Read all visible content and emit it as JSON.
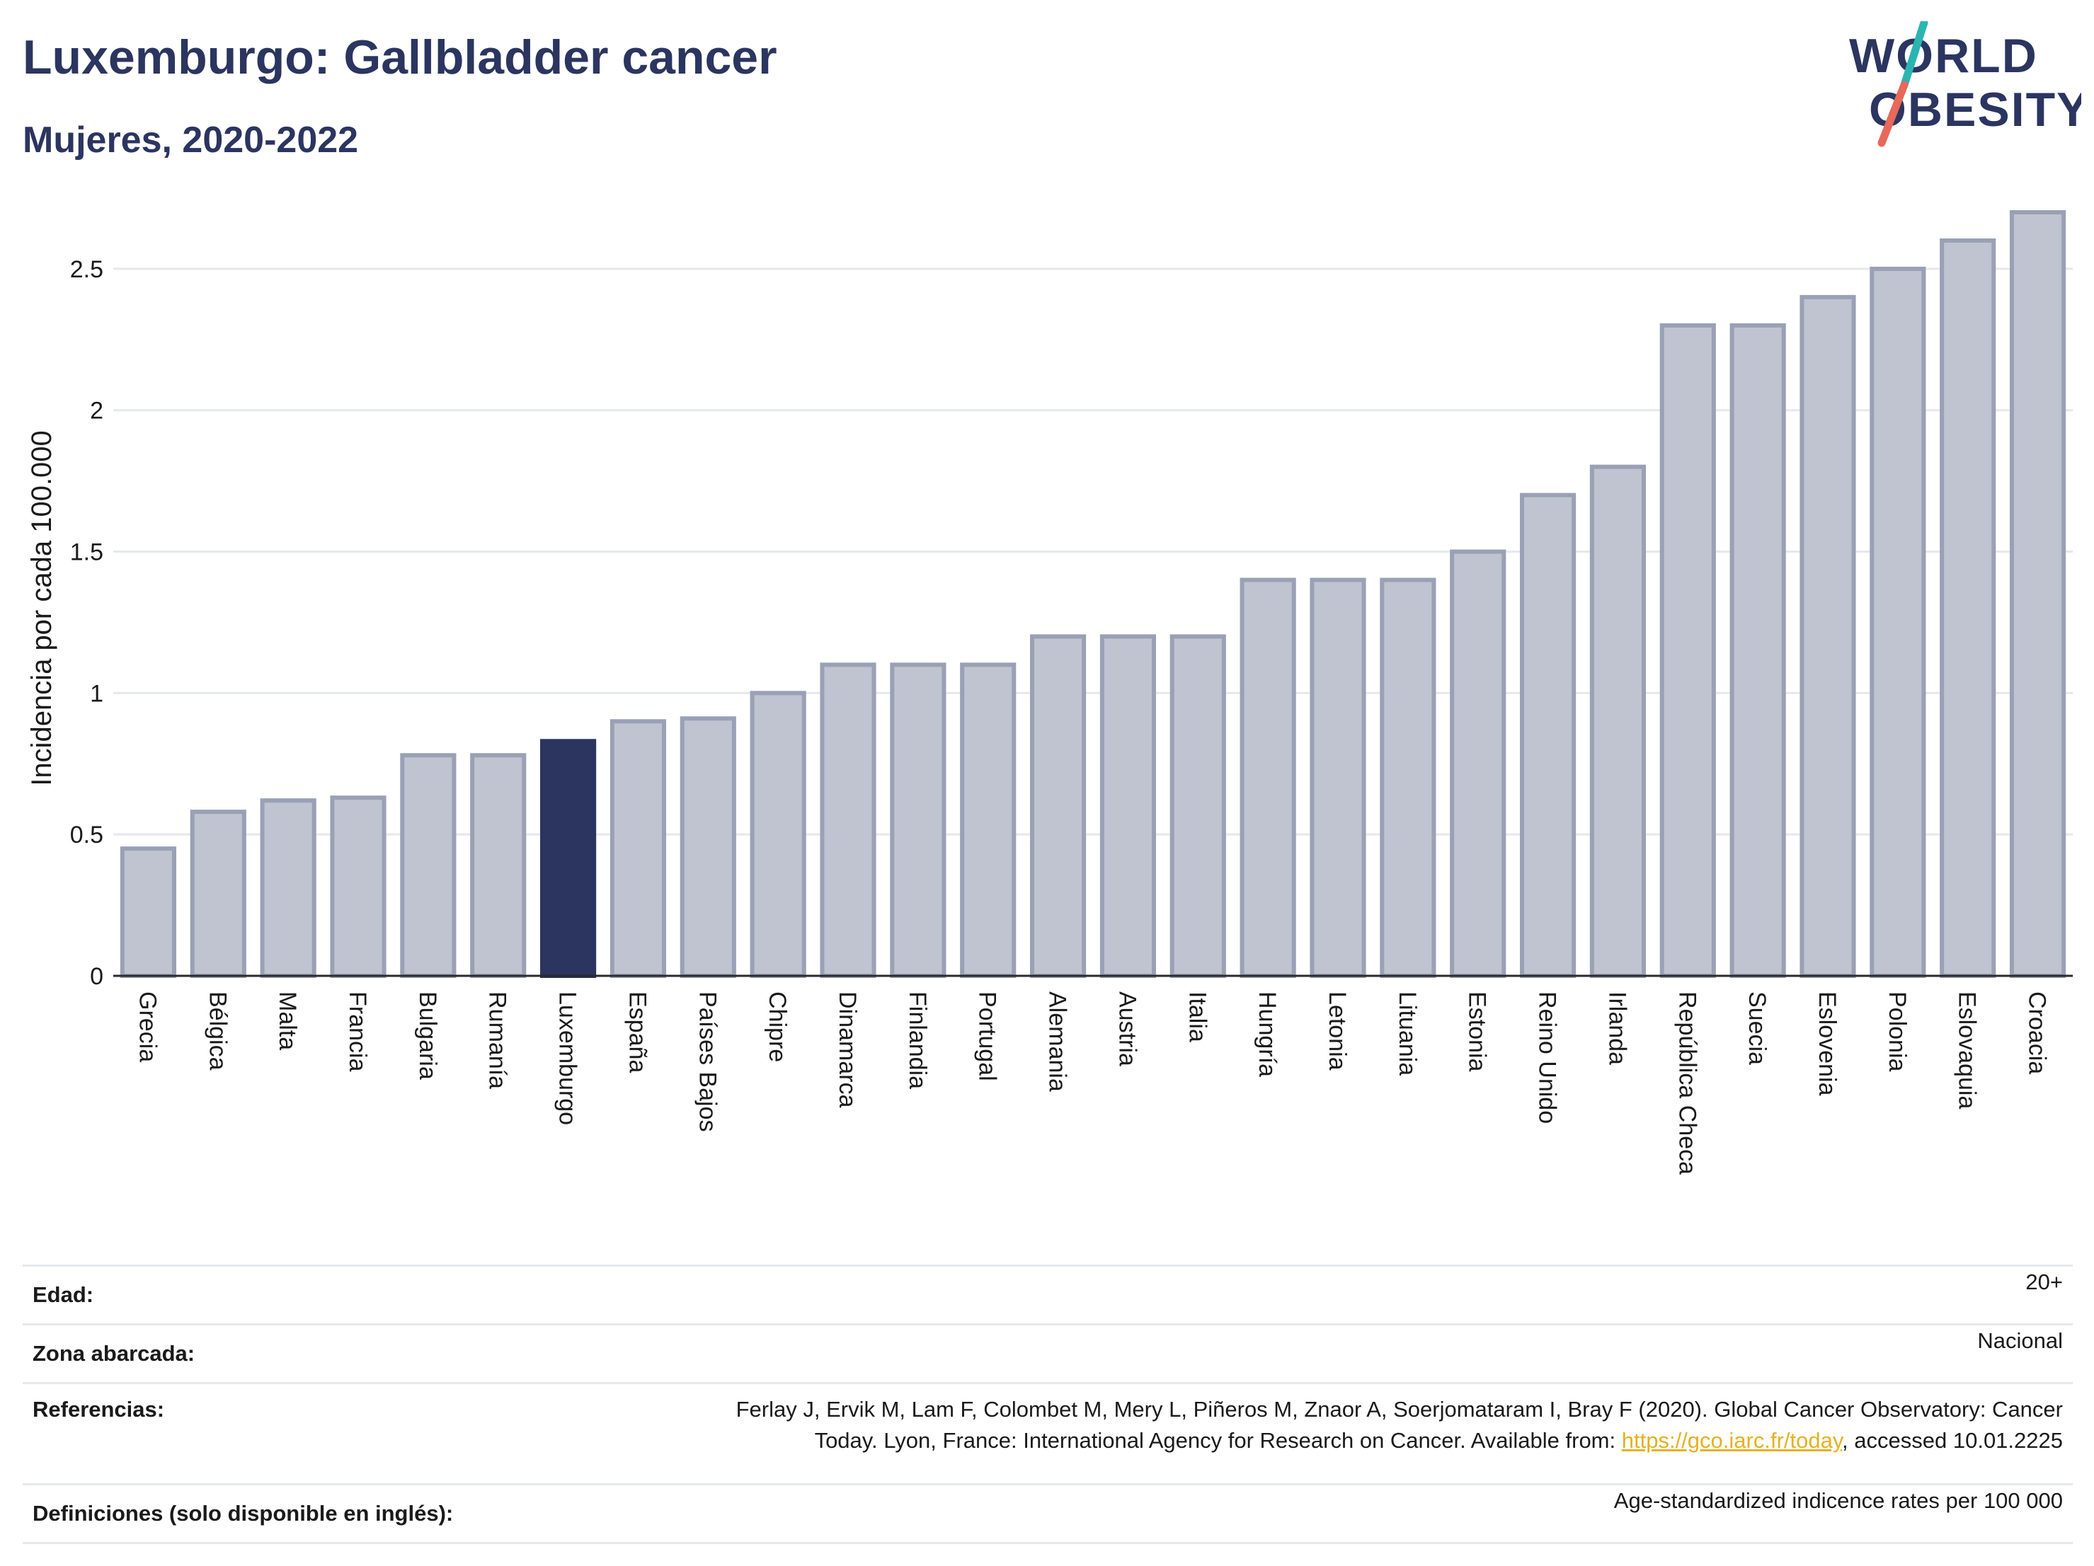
{
  "header": {
    "title": "Luxemburgo: Gallbladder cancer",
    "subtitle": "Mujeres, 2020-2022"
  },
  "logo": {
    "line1": "WORLD",
    "line2": "OBESITY",
    "colors": {
      "text": "#2b3560",
      "slash_top": "#2bb5b0",
      "slash_bottom": "#e8685a"
    }
  },
  "chart_data": {
    "type": "bar",
    "ylabel": "Incidencia por cada 100.000",
    "xlabel": "",
    "ylim": [
      0,
      2.75
    ],
    "yticks": [
      0,
      0.5,
      1,
      1.5,
      2,
      2.5
    ],
    "ytick_labels": [
      "0",
      "0.5",
      "1",
      "1.5",
      "2",
      "2.5"
    ],
    "grid": true,
    "highlight": "Luxemburgo",
    "colors": {
      "bar": "#c0c4d0",
      "bar_edge": "#9aa0b5",
      "highlight": "#2b3560",
      "grid": "#e6e8ee"
    },
    "categories": [
      "Grecia",
      "Bélgica",
      "Malta",
      "Francia",
      "Bulgaria",
      "Rumanía",
      "Luxemburgo",
      "España",
      "Países Bajos",
      "Chipre",
      "Dinamarca",
      "Finlandia",
      "Portugal",
      "Alemania",
      "Austria",
      "Italia",
      "Hungría",
      "Letonia",
      "Lituania",
      "Estonia",
      "Reino Unido",
      "Irlanda",
      "República Checa",
      "Suecia",
      "Eslovenia",
      "Polonia",
      "Eslovaquia",
      "Croacia"
    ],
    "values": [
      0.45,
      0.58,
      0.62,
      0.63,
      0.78,
      0.78,
      0.83,
      0.9,
      0.91,
      1.0,
      1.1,
      1.1,
      1.1,
      1.2,
      1.2,
      1.2,
      1.4,
      1.4,
      1.4,
      1.5,
      1.7,
      1.8,
      2.3,
      2.3,
      2.4,
      2.5,
      2.6,
      2.7
    ]
  },
  "meta": {
    "age_label": "Edad:",
    "age_value": "20+",
    "area_label": "Zona abarcada:",
    "area_value": "Nacional",
    "refs_label": "Referencias:",
    "refs_text_1": "Ferlay J, Ervik M, Lam F, Colombet M, Mery L, Piñeros M, Znaor A, Soerjomataram I, Bray F (2020). Global Cancer Observatory: Cancer",
    "refs_text_2": "Today. Lyon, France: International Agency for Research on Cancer. Available from: ",
    "refs_link": "https://gco.iarc.fr/today",
    "refs_text_3": ", accessed 10.01.2225",
    "defs_label": "Definiciones (solo disponible en inglés):",
    "defs_value": "Age-standardized indicence rates per 100 000"
  }
}
